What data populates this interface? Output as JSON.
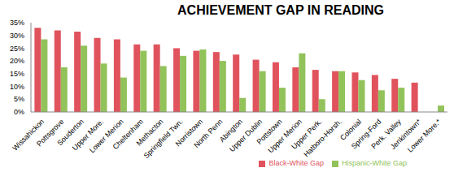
{
  "chart_data": {
    "type": "bar",
    "title": "ACHIEVEMENT GAP IN READING",
    "categories": [
      "Wissahickon",
      "Pottsgrove",
      "Souderton",
      "Upper More.",
      "Lower Merion",
      "Cheltenham",
      "Methacton",
      "Springfield Twn.",
      "Norristown",
      "North Penn",
      "Abington",
      "Upper Dublin",
      "Pottstown",
      "Upper Merion",
      "Upper Perk.",
      "Hatboro-Horsh.",
      "Colonial",
      "Spring-Ford",
      "Perk. Valley",
      "Jenkintown*",
      "Lower More.*"
    ],
    "series": [
      {
        "name": "Black-White Gap",
        "color": "#e0535d",
        "values": [
          33,
          32,
          31.5,
          29,
          28.5,
          26.5,
          26.5,
          25,
          24,
          23.5,
          22.5,
          20.5,
          19.5,
          17.5,
          16.5,
          16,
          15.5,
          14.5,
          13,
          11.5,
          null
        ]
      },
      {
        "name": "Hispanic-White Gap",
        "color": "#92c25a",
        "values": [
          28.5,
          17.5,
          26,
          19,
          13.5,
          24,
          18,
          22,
          24.5,
          20,
          5.5,
          16,
          9.5,
          23,
          5,
          16,
          12.5,
          8.5,
          9.5,
          null,
          2.5
        ]
      }
    ],
    "ylim": [
      0,
      35
    ],
    "yticks": [
      {
        "value": 0,
        "label": "0%"
      },
      {
        "value": 5,
        "label": "5%"
      },
      {
        "value": 10,
        "label": "10%"
      },
      {
        "value": 15,
        "label": "15%"
      },
      {
        "value": 20,
        "label": "20%"
      },
      {
        "value": 25,
        "label": "25%"
      },
      {
        "value": 30,
        "label": "30%"
      },
      {
        "value": 35,
        "label": "35%"
      }
    ],
    "grid": false,
    "legend": "bottom"
  }
}
